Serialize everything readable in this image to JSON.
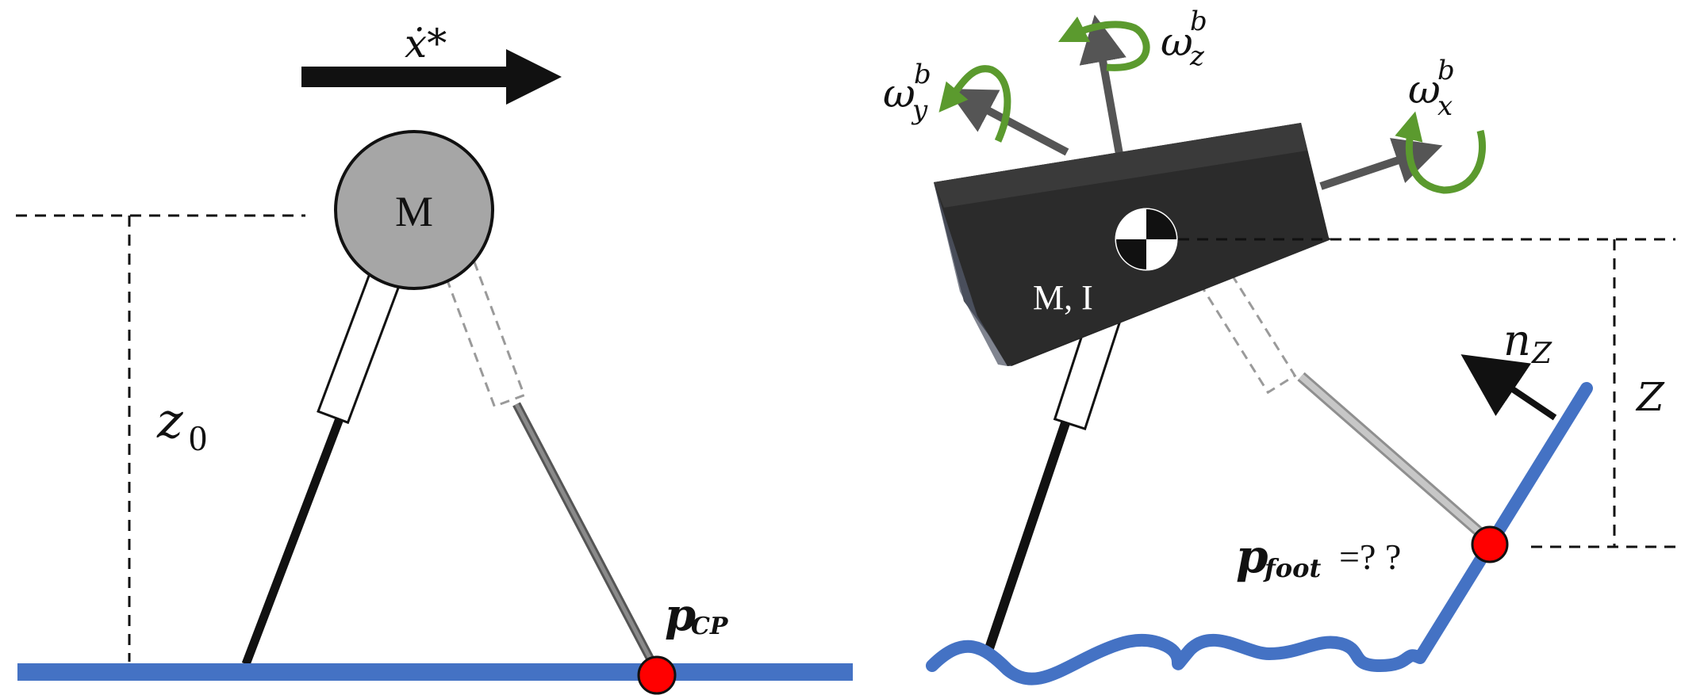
{
  "left_panel": {
    "velocity_label": "ẋ*",
    "mass_label": "M",
    "height_label": "z",
    "height_subscript": "0",
    "capture_point_label": "p",
    "capture_point_subscript": "CP"
  },
  "right_panel": {
    "omega": "ω",
    "omega_superscript": "b",
    "omega_x_subscript": "x",
    "omega_y_subscript": "y",
    "omega_z_subscript": "z",
    "body_label": "M, I",
    "normal_label": "n",
    "normal_subscript": "Z",
    "height_label": "Z",
    "foot_label": "p",
    "foot_subscript": "foot",
    "foot_suffix": " =? ?"
  },
  "colors": {
    "ground": "#4472c4",
    "contact_point": "#ff0000",
    "rotation_arrow": "#5b9a2e",
    "body": "#2b2b2b",
    "mass_circle": "#a6a6a6",
    "axis_arrow": "#555555"
  }
}
